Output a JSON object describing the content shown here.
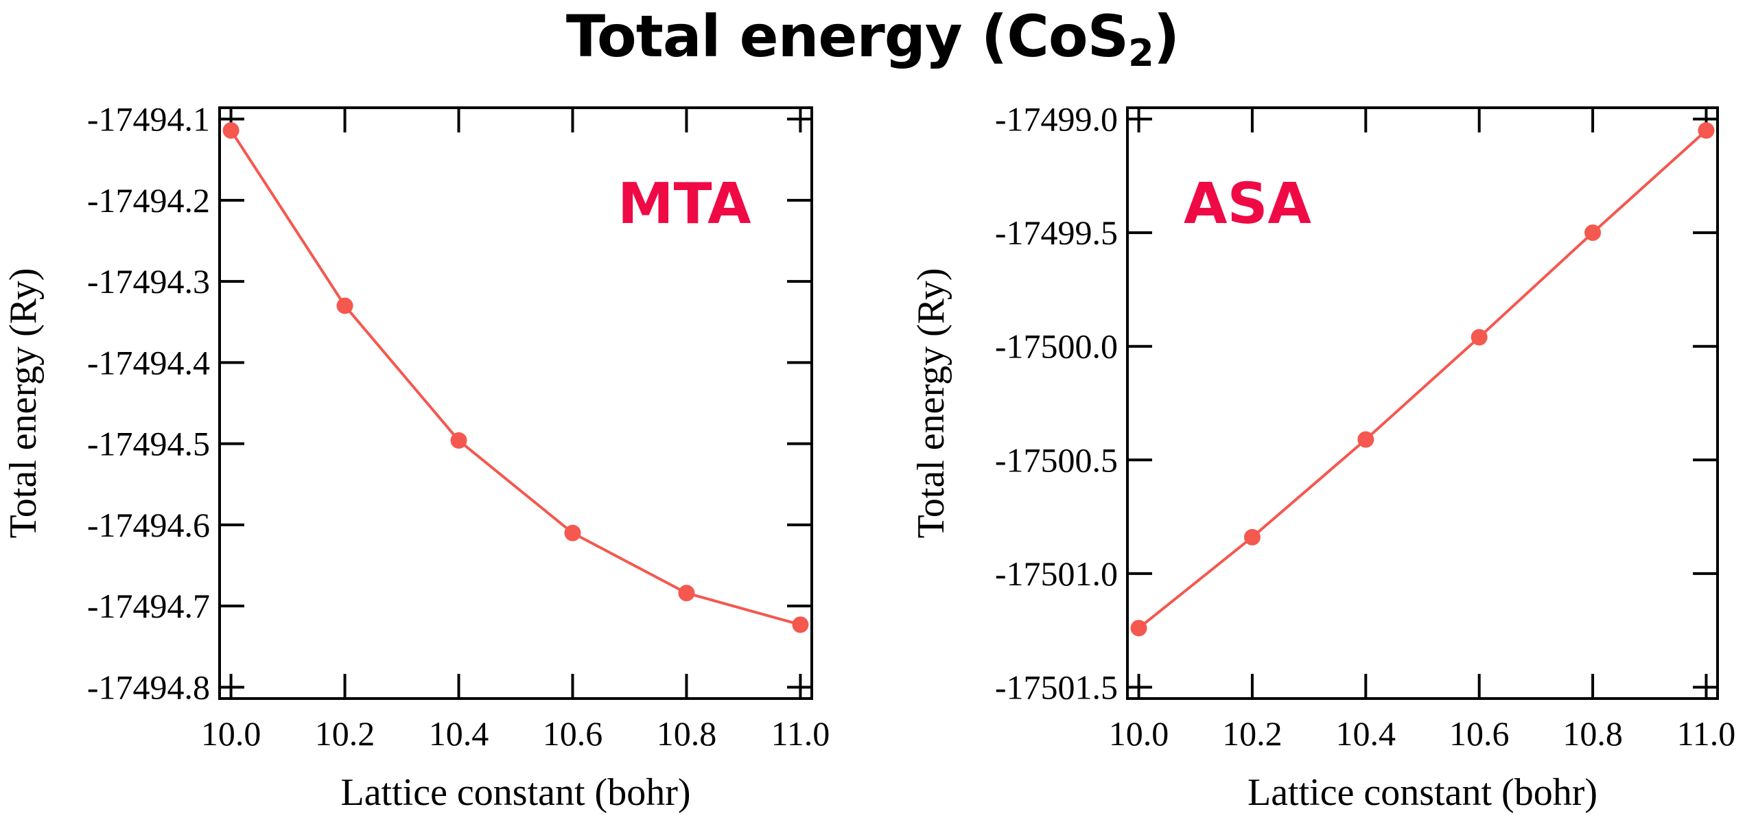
{
  "title": {
    "main": "Total energy (CoS",
    "subscript": "2",
    "close": ")"
  },
  "colors": {
    "series": "#f4584f",
    "annotation": "#ef0a45",
    "axis": "#000000"
  },
  "chart_data": [
    {
      "type": "line",
      "annotation": "MTA",
      "xlabel": "Lattice constant (bohr)",
      "ylabel": "Total energy (Ry)",
      "x": [
        10.0,
        10.2,
        10.4,
        10.6,
        10.8,
        11.0
      ],
      "y": [
        -17494.114,
        -17494.33,
        -17494.496,
        -17494.61,
        -17494.684,
        -17494.723
      ],
      "xlim": [
        9.98,
        11.02
      ],
      "ylim": [
        -17494.814,
        -17494.086
      ],
      "xticks": [
        10.0,
        10.2,
        10.4,
        10.6,
        10.8,
        11.0
      ],
      "xtick_labels": [
        "10.0",
        "10.2",
        "10.4",
        "10.6",
        "10.8",
        "11.0"
      ],
      "yticks": [
        -17494.1,
        -17494.2,
        -17494.3,
        -17494.4,
        -17494.5,
        -17494.6,
        -17494.7,
        -17494.8
      ],
      "ytick_labels": [
        "-17494.1",
        "-17494.2",
        "-17494.3",
        "-17494.4",
        "-17494.5",
        "-17494.6",
        "-17494.7",
        "-17494.8"
      ],
      "grid": false
    },
    {
      "type": "line",
      "annotation": "ASA",
      "xlabel": "Lattice constant (bohr)",
      "ylabel": "Total energy (Ry)",
      "x": [
        10.0,
        10.2,
        10.4,
        10.6,
        10.8,
        11.0
      ],
      "y": [
        -17501.24,
        -17500.84,
        -17500.41,
        -17499.96,
        -17499.5,
        -17499.05
      ],
      "xlim": [
        9.98,
        11.02
      ],
      "ylim": [
        -17501.55,
        -17498.95
      ],
      "xticks": [
        10.0,
        10.2,
        10.4,
        10.6,
        10.8,
        11.0
      ],
      "xtick_labels": [
        "10.0",
        "10.2",
        "10.4",
        "10.6",
        "10.8",
        "11.0"
      ],
      "yticks": [
        -17499.0,
        -17499.5,
        -17500.0,
        -17500.5,
        -17501.0,
        -17501.5
      ],
      "ytick_labels": [
        "-17499.0",
        "-17499.5",
        "-17500.0",
        "-17500.5",
        "-17501.0",
        "-17501.5"
      ],
      "grid": false
    }
  ]
}
